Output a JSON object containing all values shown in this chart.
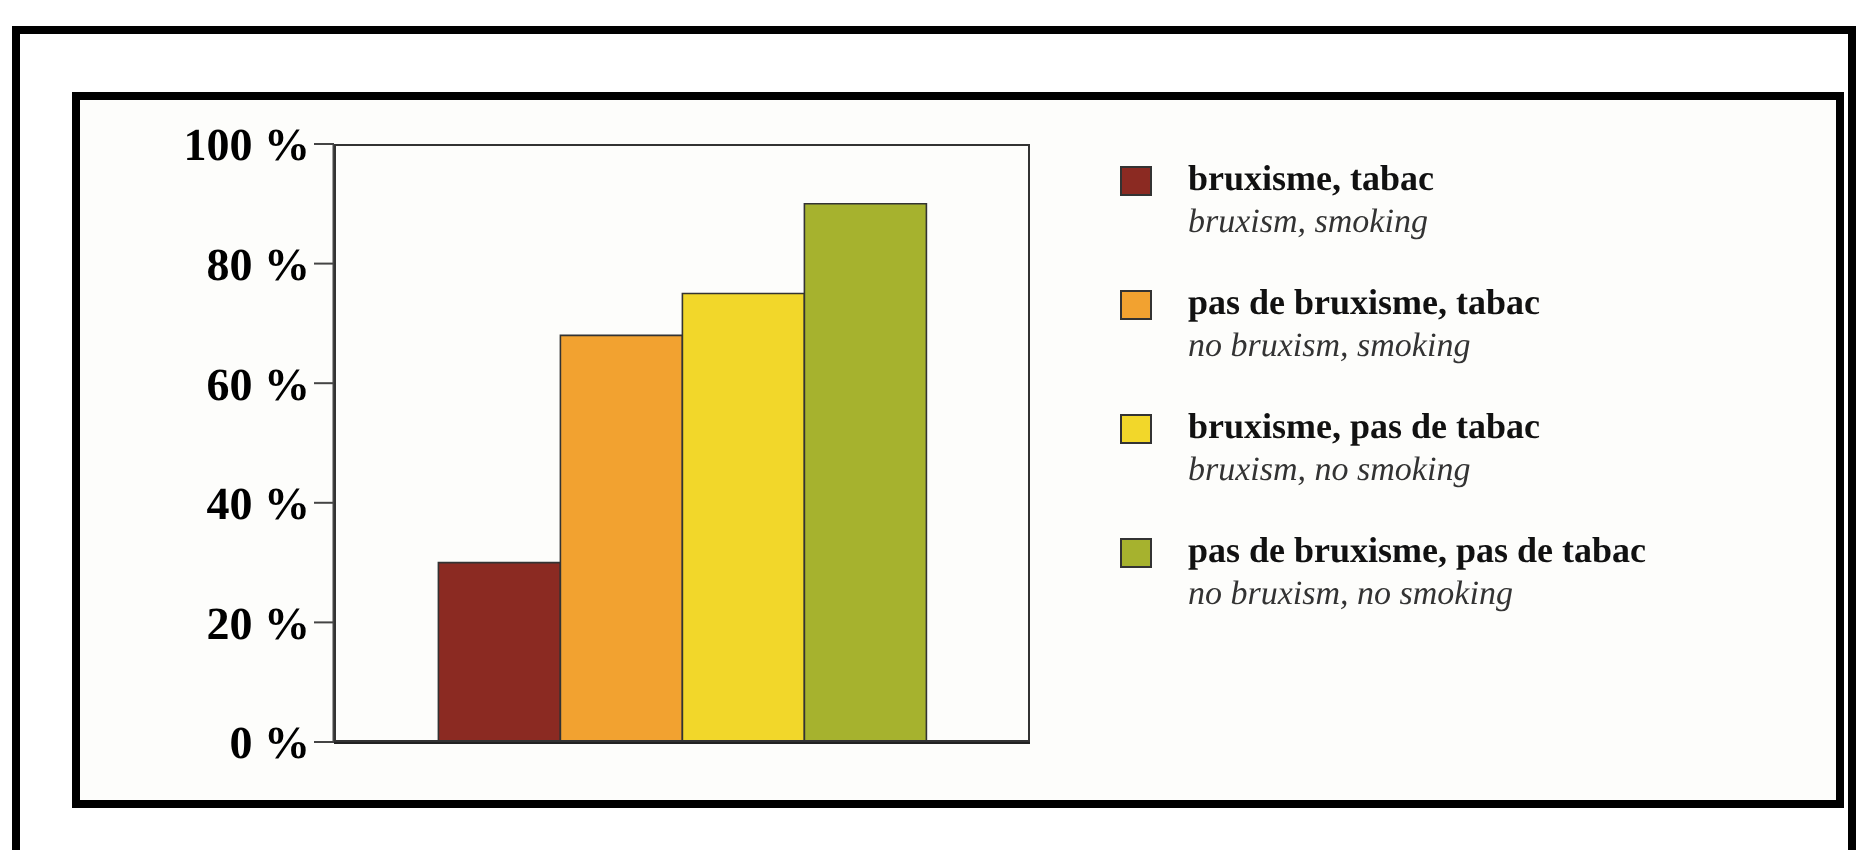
{
  "chart_data": {
    "type": "bar",
    "categories": [
      null
    ],
    "tick_labels": "y",
    "legend": "right",
    "ylim": [
      0,
      100
    ],
    "yticks": [
      {
        "value": 0,
        "label": "0 %"
      },
      {
        "value": 20,
        "label": "20 %"
      },
      {
        "value": 40,
        "label": "40 %"
      },
      {
        "value": 60,
        "label": "60 %"
      },
      {
        "value": 80,
        "label": "80 %"
      },
      {
        "value": 100,
        "label": "100 %"
      }
    ],
    "series": [
      {
        "name": "bruxisme, tabac\nbruxism, smoking",
        "color": "#8b2a22",
        "values": [
          30
        ]
      },
      {
        "name": "pas de bruxisme, tabac\nno bruxism, smoking",
        "color": "#f2a230",
        "values": [
          68
        ]
      },
      {
        "name": "bruxisme, pas de tabac\nbruxism, no smoking",
        "color": "#f2d72a",
        "values": [
          75
        ]
      },
      {
        "name": "pas de bruxisme, pas de tabac\nno bruxism, no smoking",
        "color": "#a6b22e",
        "values": [
          90
        ]
      }
    ]
  }
}
